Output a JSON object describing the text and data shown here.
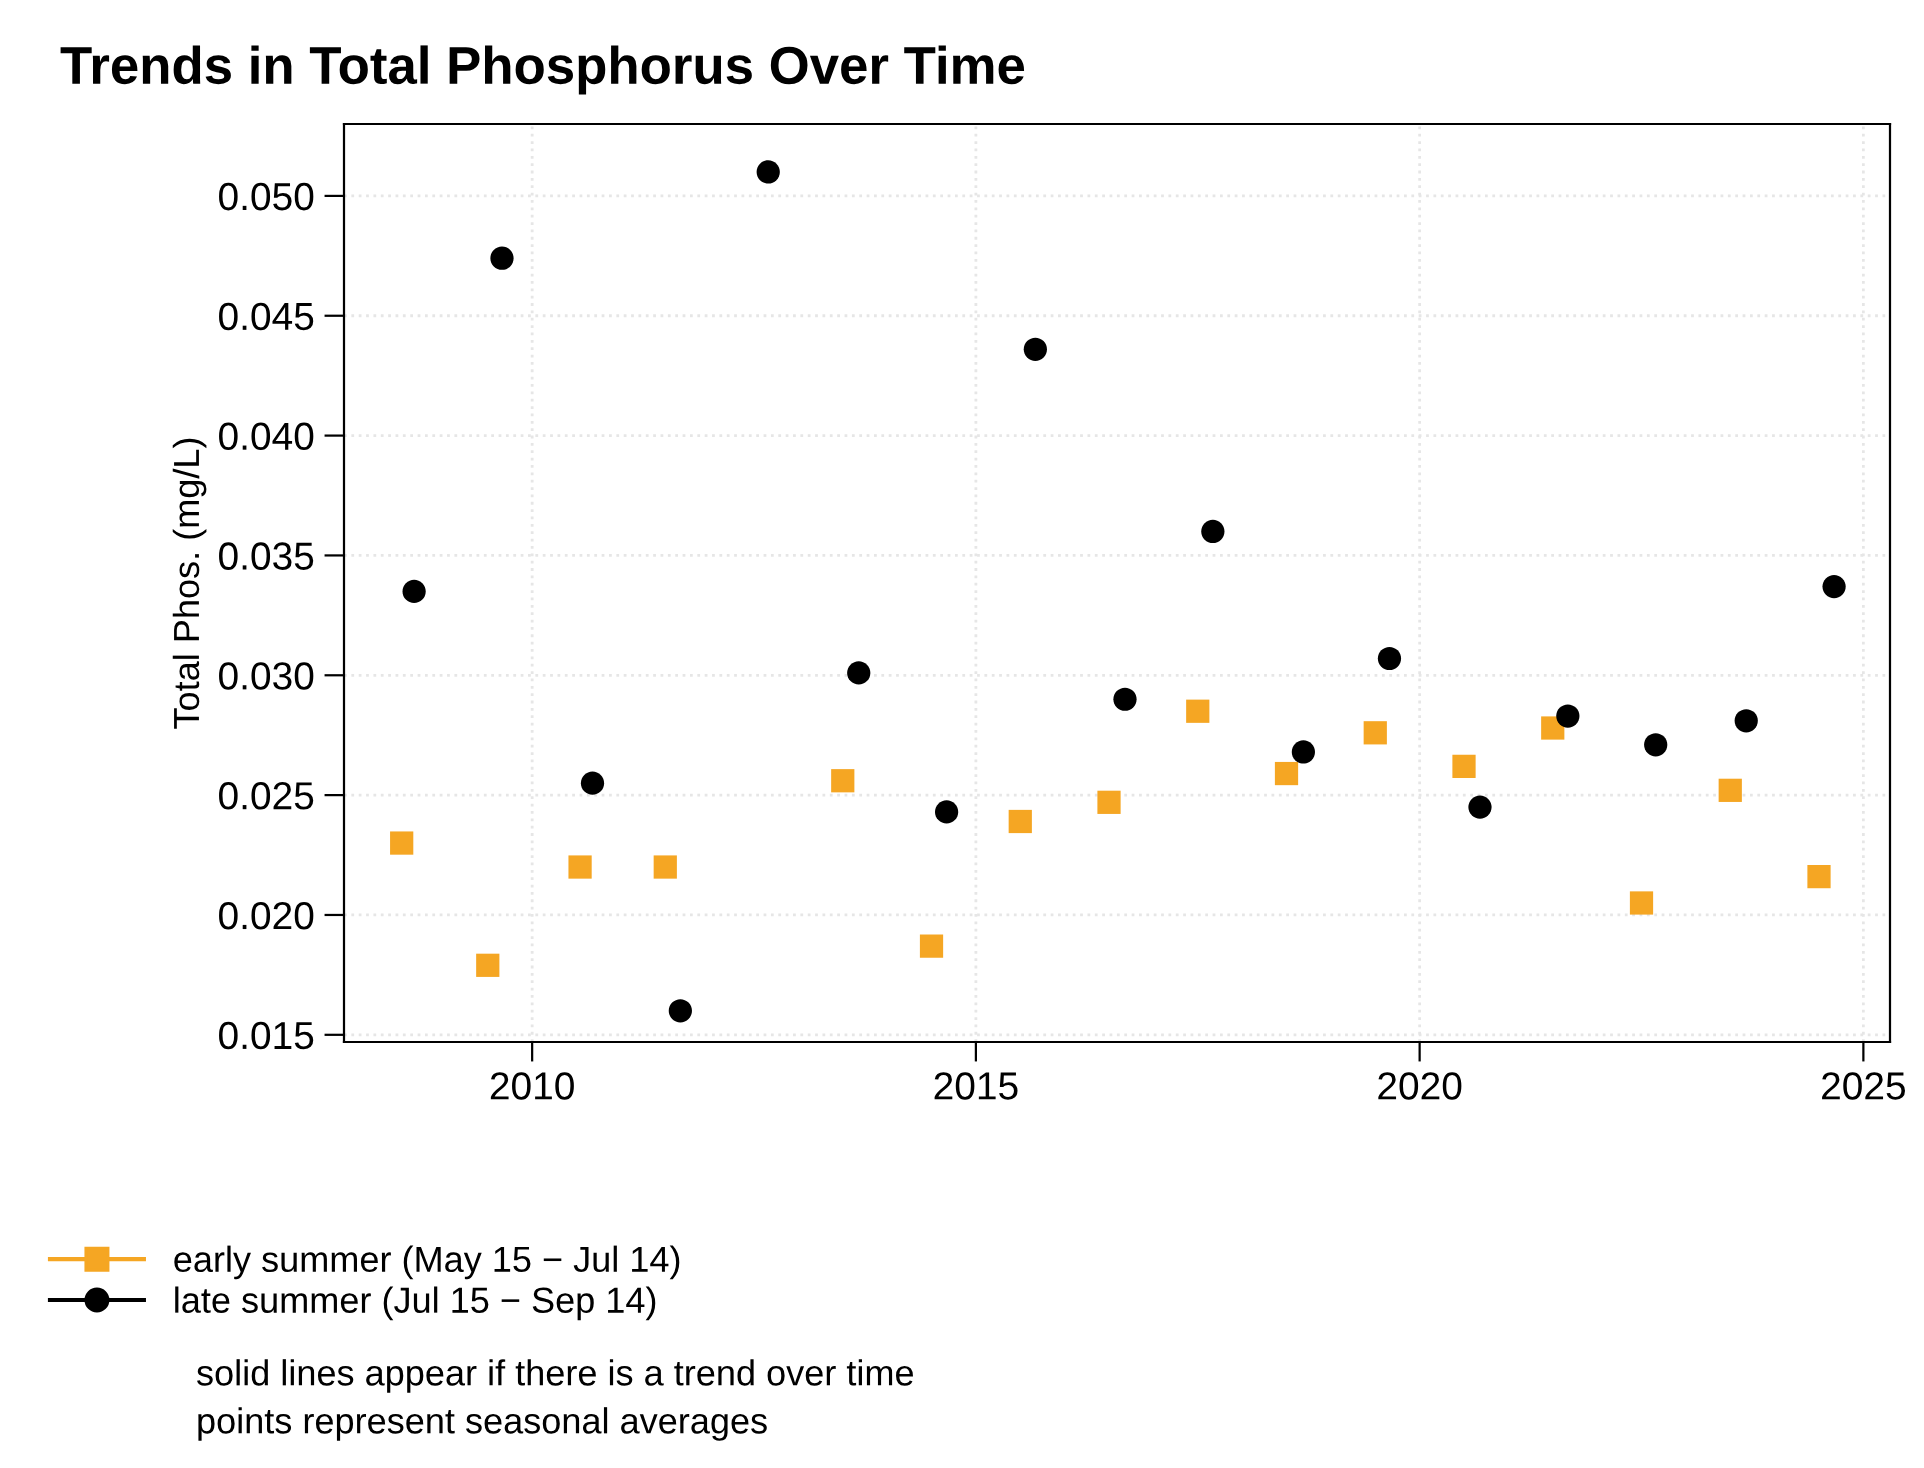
{
  "chart_data": {
    "type": "scatter",
    "title": "Trends in Total Phosphorus Over Time",
    "ylabel": "Total Phos. (mg/L)",
    "xlim": [
      2007.88,
      2025.3
    ],
    "xticks": [
      2010,
      2015,
      2020,
      2025
    ],
    "ylim": [
      0.0147,
      0.053
    ],
    "yticks": [
      {
        "value": 0.015,
        "label": "0.015"
      },
      {
        "value": 0.02,
        "label": "0.020"
      },
      {
        "value": 0.025,
        "label": "0.025"
      },
      {
        "value": 0.03,
        "label": "0.030"
      },
      {
        "value": 0.035,
        "label": "0.035"
      },
      {
        "value": 0.04,
        "label": "0.040"
      },
      {
        "value": 0.045,
        "label": "0.045"
      },
      {
        "value": 0.05,
        "label": "0.050"
      }
    ],
    "grid": true,
    "legend": "bottom left",
    "series": [
      {
        "name": "early summer (May 15 − Jul 14)",
        "color": "#f5a623",
        "marker": "square",
        "x": [
          2008.53,
          2009.5,
          2010.54,
          2011.5,
          2013.5,
          2014.5,
          2015.5,
          2016.5,
          2017.5,
          2018.5,
          2019.5,
          2020.5,
          2021.5,
          2022.5,
          2023.5,
          2024.5
        ],
        "values": [
          0.023,
          0.0179,
          0.022,
          0.022,
          0.0256,
          0.0187,
          0.0239,
          0.0247,
          0.0285,
          0.0259,
          0.0276,
          0.0262,
          0.0278,
          0.0205,
          0.0252,
          0.0216
        ]
      },
      {
        "name": "late summer (Jul 15 − Sep 14)",
        "color": "#000000",
        "marker": "circle",
        "x": [
          2008.67,
          2009.66,
          2010.68,
          2011.67,
          2012.66,
          2013.68,
          2014.67,
          2015.67,
          2016.68,
          2017.67,
          2018.69,
          2019.66,
          2020.68,
          2021.67,
          2022.66,
          2023.68,
          2024.67
        ],
        "values": [
          0.0335,
          0.0474,
          0.0255,
          0.016,
          0.051,
          0.0301,
          0.0243,
          0.0436,
          0.029,
          0.036,
          0.0268,
          0.0307,
          0.0245,
          0.0283,
          0.0271,
          0.0281,
          0.0337
        ]
      }
    ],
    "annotations": [
      "solid lines appear if there is a trend over time",
      "points represent seasonal averages"
    ]
  }
}
